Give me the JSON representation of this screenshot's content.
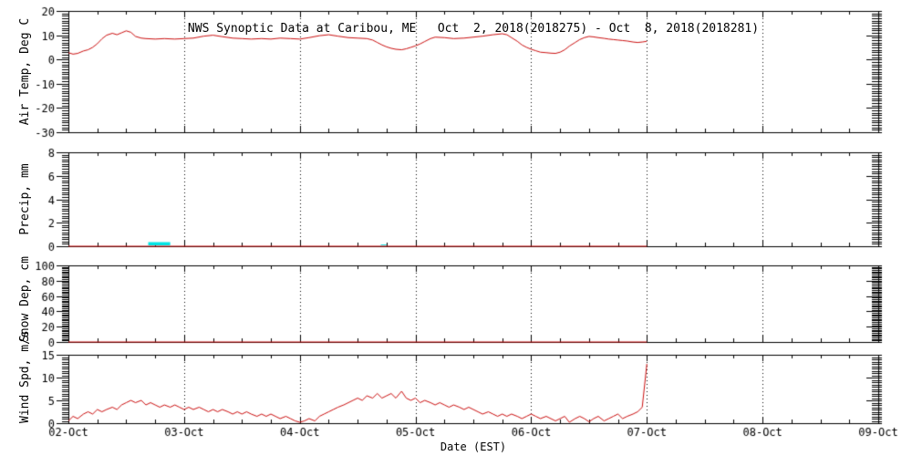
{
  "figure": {
    "background": "#ffffff",
    "axis_color": "#000000",
    "line_color": "#cc1111",
    "precip_color": "#00e5e5"
  },
  "chart_data": {
    "type": "line",
    "title": "NWS Synoptic Data at Caribou, ME   Oct  2, 2018(2018275) - Oct  8, 2018(2018281)",
    "xlabel": "Date (EST)",
    "xlim": [
      0,
      7
    ],
    "x_ticks": [
      0,
      1,
      2,
      3,
      4,
      5,
      6,
      7
    ],
    "x_tick_labels": [
      "02-Oct",
      "03-Oct",
      "04-Oct",
      "05-Oct",
      "06-Oct",
      "07-Oct",
      "08-Oct",
      "09-Oct"
    ],
    "x_minor_per_major": 4,
    "grid": "dotted-vertical",
    "legend": "none",
    "panels": [
      {
        "name": "air-temp",
        "ylabel": "Air Temp, Deg C",
        "ylim": [
          -30,
          20
        ],
        "yticks": [
          20,
          10,
          0,
          -10,
          -20,
          -30
        ],
        "minor_step": 1,
        "series": [
          {
            "type": "line",
            "name": "air-temperature",
            "color_key": "line_color",
            "x": [
              0,
              0.04,
              0.08,
              0.13,
              0.17,
              0.21,
              0.25,
              0.29,
              0.33,
              0.38,
              0.42,
              0.46,
              0.5,
              0.54,
              0.58,
              0.63,
              0.67,
              0.75,
              0.83,
              0.92,
              1,
              1.08,
              1.17,
              1.25,
              1.33,
              1.42,
              1.5,
              1.58,
              1.67,
              1.75,
              1.83,
              1.92,
              2,
              2.08,
              2.17,
              2.25,
              2.33,
              2.42,
              2.5,
              2.58,
              2.63,
              2.67,
              2.71,
              2.75,
              2.79,
              2.83,
              2.88,
              2.92,
              2.96,
              3,
              3.04,
              3.08,
              3.13,
              3.17,
              3.25,
              3.33,
              3.42,
              3.5,
              3.58,
              3.67,
              3.75,
              3.79,
              3.83,
              3.88,
              3.92,
              3.96,
              4,
              4.04,
              4.08,
              4.13,
              4.17,
              4.21,
              4.25,
              4.29,
              4.33,
              4.38,
              4.42,
              4.46,
              4.5,
              4.54,
              4.58,
              4.63,
              4.67,
              4.71,
              4.75,
              4.79,
              4.83,
              4.88,
              4.92,
              4.96,
              5
            ],
            "y": [
              2.8,
              2.2,
              2.5,
              3.5,
              4,
              5,
              6.5,
              8.5,
              10,
              10.8,
              10.2,
              11,
              11.8,
              11.2,
              9.5,
              8.8,
              8.6,
              8.4,
              8.6,
              8.4,
              8.6,
              8.8,
              9.6,
              10,
              9.4,
              8.8,
              8.6,
              8.4,
              8.6,
              8.4,
              8.8,
              8.6,
              8.4,
              9,
              9.8,
              10.2,
              9.6,
              9,
              8.8,
              8.6,
              8,
              7,
              6,
              5.2,
              4.6,
              4.2,
              4,
              4.4,
              5,
              5.6,
              6.4,
              7.4,
              8.6,
              9.2,
              9,
              8.6,
              8.8,
              9.2,
              9.6,
              10.2,
              10.6,
              10.2,
              9,
              7.5,
              6,
              5,
              4.2,
              3.6,
              3,
              2.8,
              2.6,
              2.5,
              3,
              4,
              5.5,
              7,
              8.2,
              9,
              9.5,
              9.3,
              9,
              8.7,
              8.4,
              8.2,
              8,
              7.8,
              7.6,
              7.2,
              7,
              7.2,
              7.5
            ]
          }
        ]
      },
      {
        "name": "precip",
        "ylabel": "Precip, mm",
        "ylim": [
          0,
          8
        ],
        "yticks": [
          8,
          6,
          4,
          2,
          0
        ],
        "minor_step": 0.2,
        "series": [
          {
            "type": "bars",
            "name": "precipitation",
            "color_key": "precip_color",
            "bars": [
              [
                0.69,
                0.19,
                0.35
              ],
              [
                2.7,
                0.05,
                0.15
              ]
            ]
          },
          {
            "type": "line",
            "name": "precip-baseline",
            "color_key": "line_color",
            "x": [
              0,
              5
            ],
            "y": [
              0,
              0
            ]
          }
        ]
      },
      {
        "name": "snow-dep",
        "ylabel": "Snow Dep, cm",
        "ylim": [
          0,
          100
        ],
        "yticks": [
          100,
          80,
          60,
          40,
          20,
          0
        ],
        "minor_step": 2,
        "series": [
          {
            "type": "line",
            "name": "snow-depth",
            "color_key": "line_color",
            "x": [
              0,
              5
            ],
            "y": [
              0,
              0
            ]
          }
        ]
      },
      {
        "name": "wind-spd",
        "ylabel": "Wind Spd, m/s",
        "ylim": [
          0,
          15
        ],
        "yticks": [
          15,
          10,
          5,
          0
        ],
        "minor_step": 0.5,
        "series": [
          {
            "type": "line",
            "name": "wind-speed",
            "color_key": "line_color",
            "x": [
              0,
              0.04,
              0.08,
              0.13,
              0.17,
              0.21,
              0.25,
              0.29,
              0.33,
              0.38,
              0.42,
              0.46,
              0.5,
              0.54,
              0.58,
              0.63,
              0.67,
              0.71,
              0.75,
              0.79,
              0.83,
              0.88,
              0.92,
              0.96,
              1,
              1.04,
              1.08,
              1.13,
              1.17,
              1.21,
              1.25,
              1.29,
              1.33,
              1.38,
              1.42,
              1.46,
              1.5,
              1.54,
              1.58,
              1.63,
              1.67,
              1.71,
              1.75,
              1.79,
              1.83,
              1.88,
              1.92,
              1.96,
              2,
              2.04,
              2.08,
              2.13,
              2.17,
              2.21,
              2.25,
              2.29,
              2.33,
              2.38,
              2.42,
              2.46,
              2.5,
              2.54,
              2.58,
              2.63,
              2.67,
              2.71,
              2.75,
              2.79,
              2.83,
              2.88,
              2.92,
              2.96,
              3,
              3.04,
              3.08,
              3.13,
              3.17,
              3.21,
              3.25,
              3.29,
              3.33,
              3.38,
              3.42,
              3.46,
              3.5,
              3.54,
              3.58,
              3.63,
              3.67,
              3.71,
              3.75,
              3.79,
              3.83,
              3.88,
              3.92,
              3.96,
              4,
              4.04,
              4.08,
              4.13,
              4.17,
              4.21,
              4.25,
              4.29,
              4.33,
              4.38,
              4.42,
              4.46,
              4.5,
              4.54,
              4.58,
              4.63,
              4.67,
              4.71,
              4.75,
              4.79,
              4.83,
              4.88,
              4.92,
              4.96,
              5
            ],
            "y": [
              0.5,
              1.5,
              1,
              2,
              2.5,
              2,
              3,
              2.5,
              3,
              3.5,
              3,
              4,
              4.5,
              5,
              4.5,
              5,
              4,
              4.5,
              4,
              3.5,
              4,
              3.5,
              4,
              3.5,
              3,
              3.5,
              3,
              3.5,
              3,
              2.5,
              3,
              2.5,
              3,
              2.5,
              2,
              2.5,
              2,
              2.5,
              2,
              1.5,
              2,
              1.5,
              2,
              1.5,
              1,
              1.5,
              1,
              0.5,
              0.2,
              0.5,
              1,
              0.5,
              1.5,
              2,
              2.5,
              3,
              3.5,
              4,
              4.5,
              5,
              5.5,
              5,
              6,
              5.5,
              6.5,
              5.5,
              6,
              6.5,
              5.5,
              7,
              5.5,
              5,
              5.5,
              4.5,
              5,
              4.5,
              4,
              4.5,
              4,
              3.5,
              4,
              3.5,
              3,
              3.5,
              3,
              2.5,
              2,
              2.5,
              2,
              1.5,
              2,
              1.5,
              2,
              1.5,
              1,
              1.5,
              2,
              1.5,
              1,
              1.5,
              1,
              0.5,
              1,
              1.5,
              0.2,
              1,
              1.5,
              1,
              0.3,
              1,
              1.5,
              0.5,
              1,
              1.5,
              2,
              1,
              1.5,
              2,
              2.5,
              3.5,
              13
            ]
          }
        ]
      }
    ]
  }
}
